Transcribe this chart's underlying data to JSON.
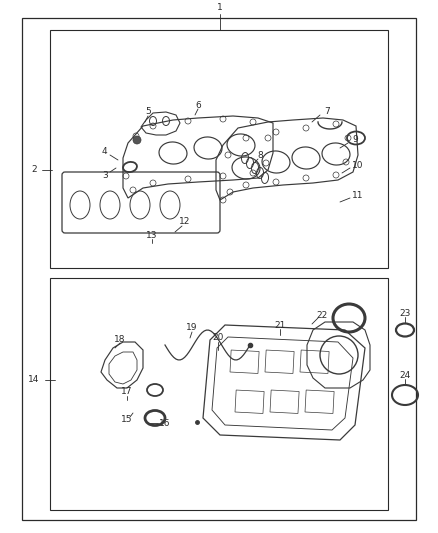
{
  "bg_color": "#ffffff",
  "lc": "#2a2a2a",
  "pc": "#3a3a3a",
  "fs": 6.5,
  "fig_w": 4.38,
  "fig_h": 5.33,
  "dpi": 100
}
